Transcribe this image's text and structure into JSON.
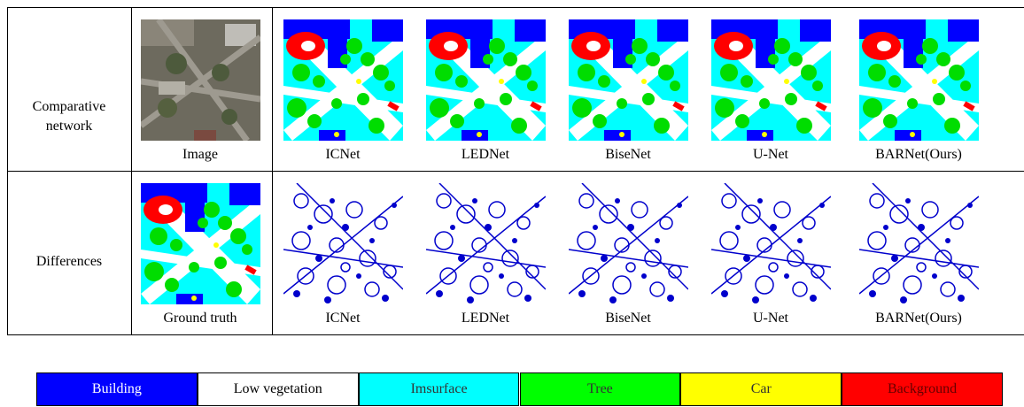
{
  "rows": [
    {
      "label": "Comparative network",
      "captions": [
        "Image",
        "ICNet",
        "LEDNet",
        "BiseNet",
        "U-Net",
        "BARNet(Ours)"
      ]
    },
    {
      "label": "Differences",
      "captions": [
        "Ground truth",
        "ICNet",
        "LEDNet",
        "BiseNet",
        "U-Net",
        "BARNet(Ours)"
      ]
    }
  ],
  "legend": [
    {
      "name": "Building",
      "color": "#0000ff"
    },
    {
      "name": "Low vegetation",
      "color": "#ffffff"
    },
    {
      "name": "Imsurface",
      "color": "#00ffff"
    },
    {
      "name": "Tree",
      "color": "#00ff00"
    },
    {
      "name": "Car",
      "color": "#ffff00"
    },
    {
      "name": "Background",
      "color": "#ff0000"
    }
  ]
}
